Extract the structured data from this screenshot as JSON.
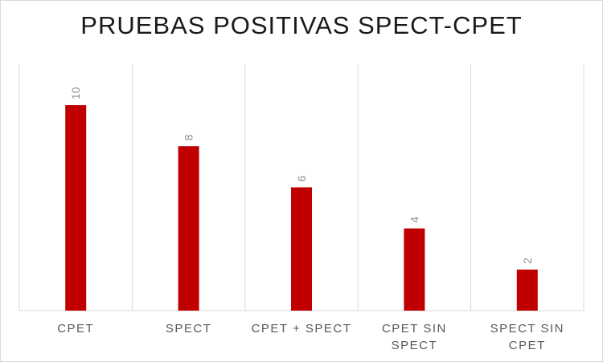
{
  "chart_data": {
    "type": "bar",
    "title": "PRUEBAS POSITIVAS SPECT-CPET",
    "categories": [
      [
        "CPET"
      ],
      [
        "SPECT"
      ],
      [
        "CPET + SPECT"
      ],
      [
        "CPET SIN",
        "SPECT"
      ],
      [
        "SPECT SIN",
        "CPET"
      ]
    ],
    "values": [
      10,
      8,
      6,
      4,
      2
    ],
    "data_labels": [
      "10",
      "8",
      "6",
      "4",
      "2"
    ],
    "bar_color": "#c00000",
    "grid": "vertical category separators",
    "legend": "none"
  }
}
